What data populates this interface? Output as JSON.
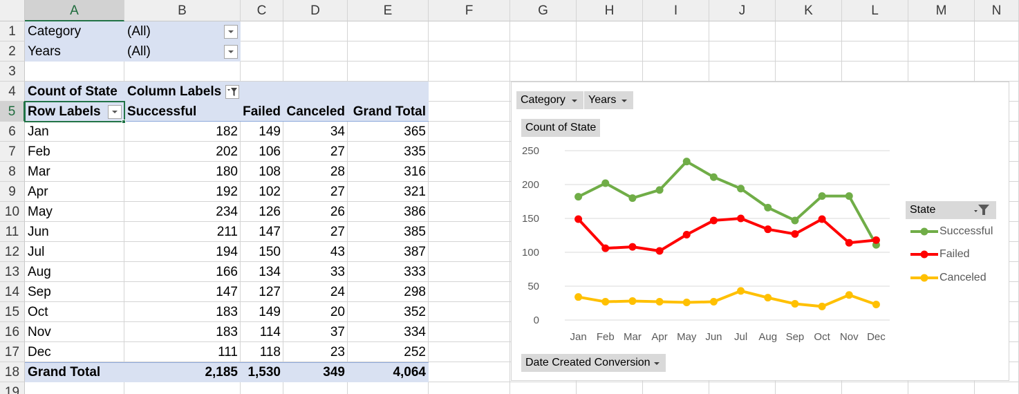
{
  "columns": [
    "A",
    "B",
    "C",
    "D",
    "E",
    "F",
    "G",
    "H",
    "I",
    "J",
    "K",
    "L",
    "M",
    "N"
  ],
  "rows": [
    "1",
    "2",
    "3",
    "4",
    "5",
    "6",
    "7",
    "8",
    "9",
    "10",
    "11",
    "12",
    "13",
    "14",
    "15",
    "16",
    "17",
    "18",
    "19"
  ],
  "filters": [
    {
      "label": "Category",
      "value": "(All)"
    },
    {
      "label": "Years",
      "value": "(All)"
    }
  ],
  "pivot": {
    "corner_label": "Count of State",
    "column_labels": "Column Labels",
    "row_labels": "Row Labels",
    "headers": [
      "Successful",
      "Failed",
      "Canceled",
      "Grand Total"
    ],
    "rows": [
      {
        "label": "Jan",
        "values": [
          "182",
          "149",
          "34",
          "365"
        ]
      },
      {
        "label": "Feb",
        "values": [
          "202",
          "106",
          "27",
          "335"
        ]
      },
      {
        "label": "Mar",
        "values": [
          "180",
          "108",
          "28",
          "316"
        ]
      },
      {
        "label": "Apr",
        "values": [
          "192",
          "102",
          "27",
          "321"
        ]
      },
      {
        "label": "May",
        "values": [
          "234",
          "126",
          "26",
          "386"
        ]
      },
      {
        "label": "Jun",
        "values": [
          "211",
          "147",
          "27",
          "385"
        ]
      },
      {
        "label": "Jul",
        "values": [
          "194",
          "150",
          "43",
          "387"
        ]
      },
      {
        "label": "Aug",
        "values": [
          "166",
          "134",
          "33",
          "333"
        ]
      },
      {
        "label": "Sep",
        "values": [
          "147",
          "127",
          "24",
          "298"
        ]
      },
      {
        "label": "Oct",
        "values": [
          "183",
          "149",
          "20",
          "352"
        ]
      },
      {
        "label": "Nov",
        "values": [
          "183",
          "114",
          "37",
          "334"
        ]
      },
      {
        "label": "Dec",
        "values": [
          "111",
          "118",
          "23",
          "252"
        ]
      }
    ],
    "total": {
      "label": "Grand Total",
      "values": [
        "2,185",
        "1,530",
        "349",
        "4,064"
      ]
    }
  },
  "chart_buttons": {
    "category": "Category",
    "years": "Years",
    "value_field": "Count of State",
    "axis_field": "Date Created Conversion",
    "legend_field": "State"
  },
  "colors": {
    "accent": "#217346",
    "pivot_header_fill": "#d9e1f2",
    "successful": "#70ad47",
    "failed": "#ff0000",
    "canceled": "#ffc000"
  },
  "icons": [
    "dropdown-arrow-icon",
    "filter-icon",
    "filter-dropdown-icon"
  ],
  "chart_data": {
    "type": "line",
    "categories": [
      "Jan",
      "Feb",
      "Mar",
      "Apr",
      "May",
      "Jun",
      "Jul",
      "Aug",
      "Sep",
      "Oct",
      "Nov",
      "Dec"
    ],
    "series": [
      {
        "name": "Successful",
        "color": "#70ad47",
        "values": [
          182,
          202,
          180,
          192,
          234,
          211,
          194,
          166,
          147,
          183,
          183,
          111
        ]
      },
      {
        "name": "Failed",
        "color": "#ff0000",
        "values": [
          149,
          106,
          108,
          102,
          126,
          147,
          150,
          134,
          127,
          149,
          114,
          118
        ]
      },
      {
        "name": "Canceled",
        "color": "#ffc000",
        "values": [
          34,
          27,
          28,
          27,
          26,
          27,
          43,
          33,
          24,
          20,
          37,
          23
        ]
      }
    ],
    "y_ticks": [
      "0",
      "50",
      "100",
      "150",
      "200",
      "250"
    ],
    "ylim": [
      0,
      250
    ],
    "grid": true,
    "legend_position": "right"
  }
}
